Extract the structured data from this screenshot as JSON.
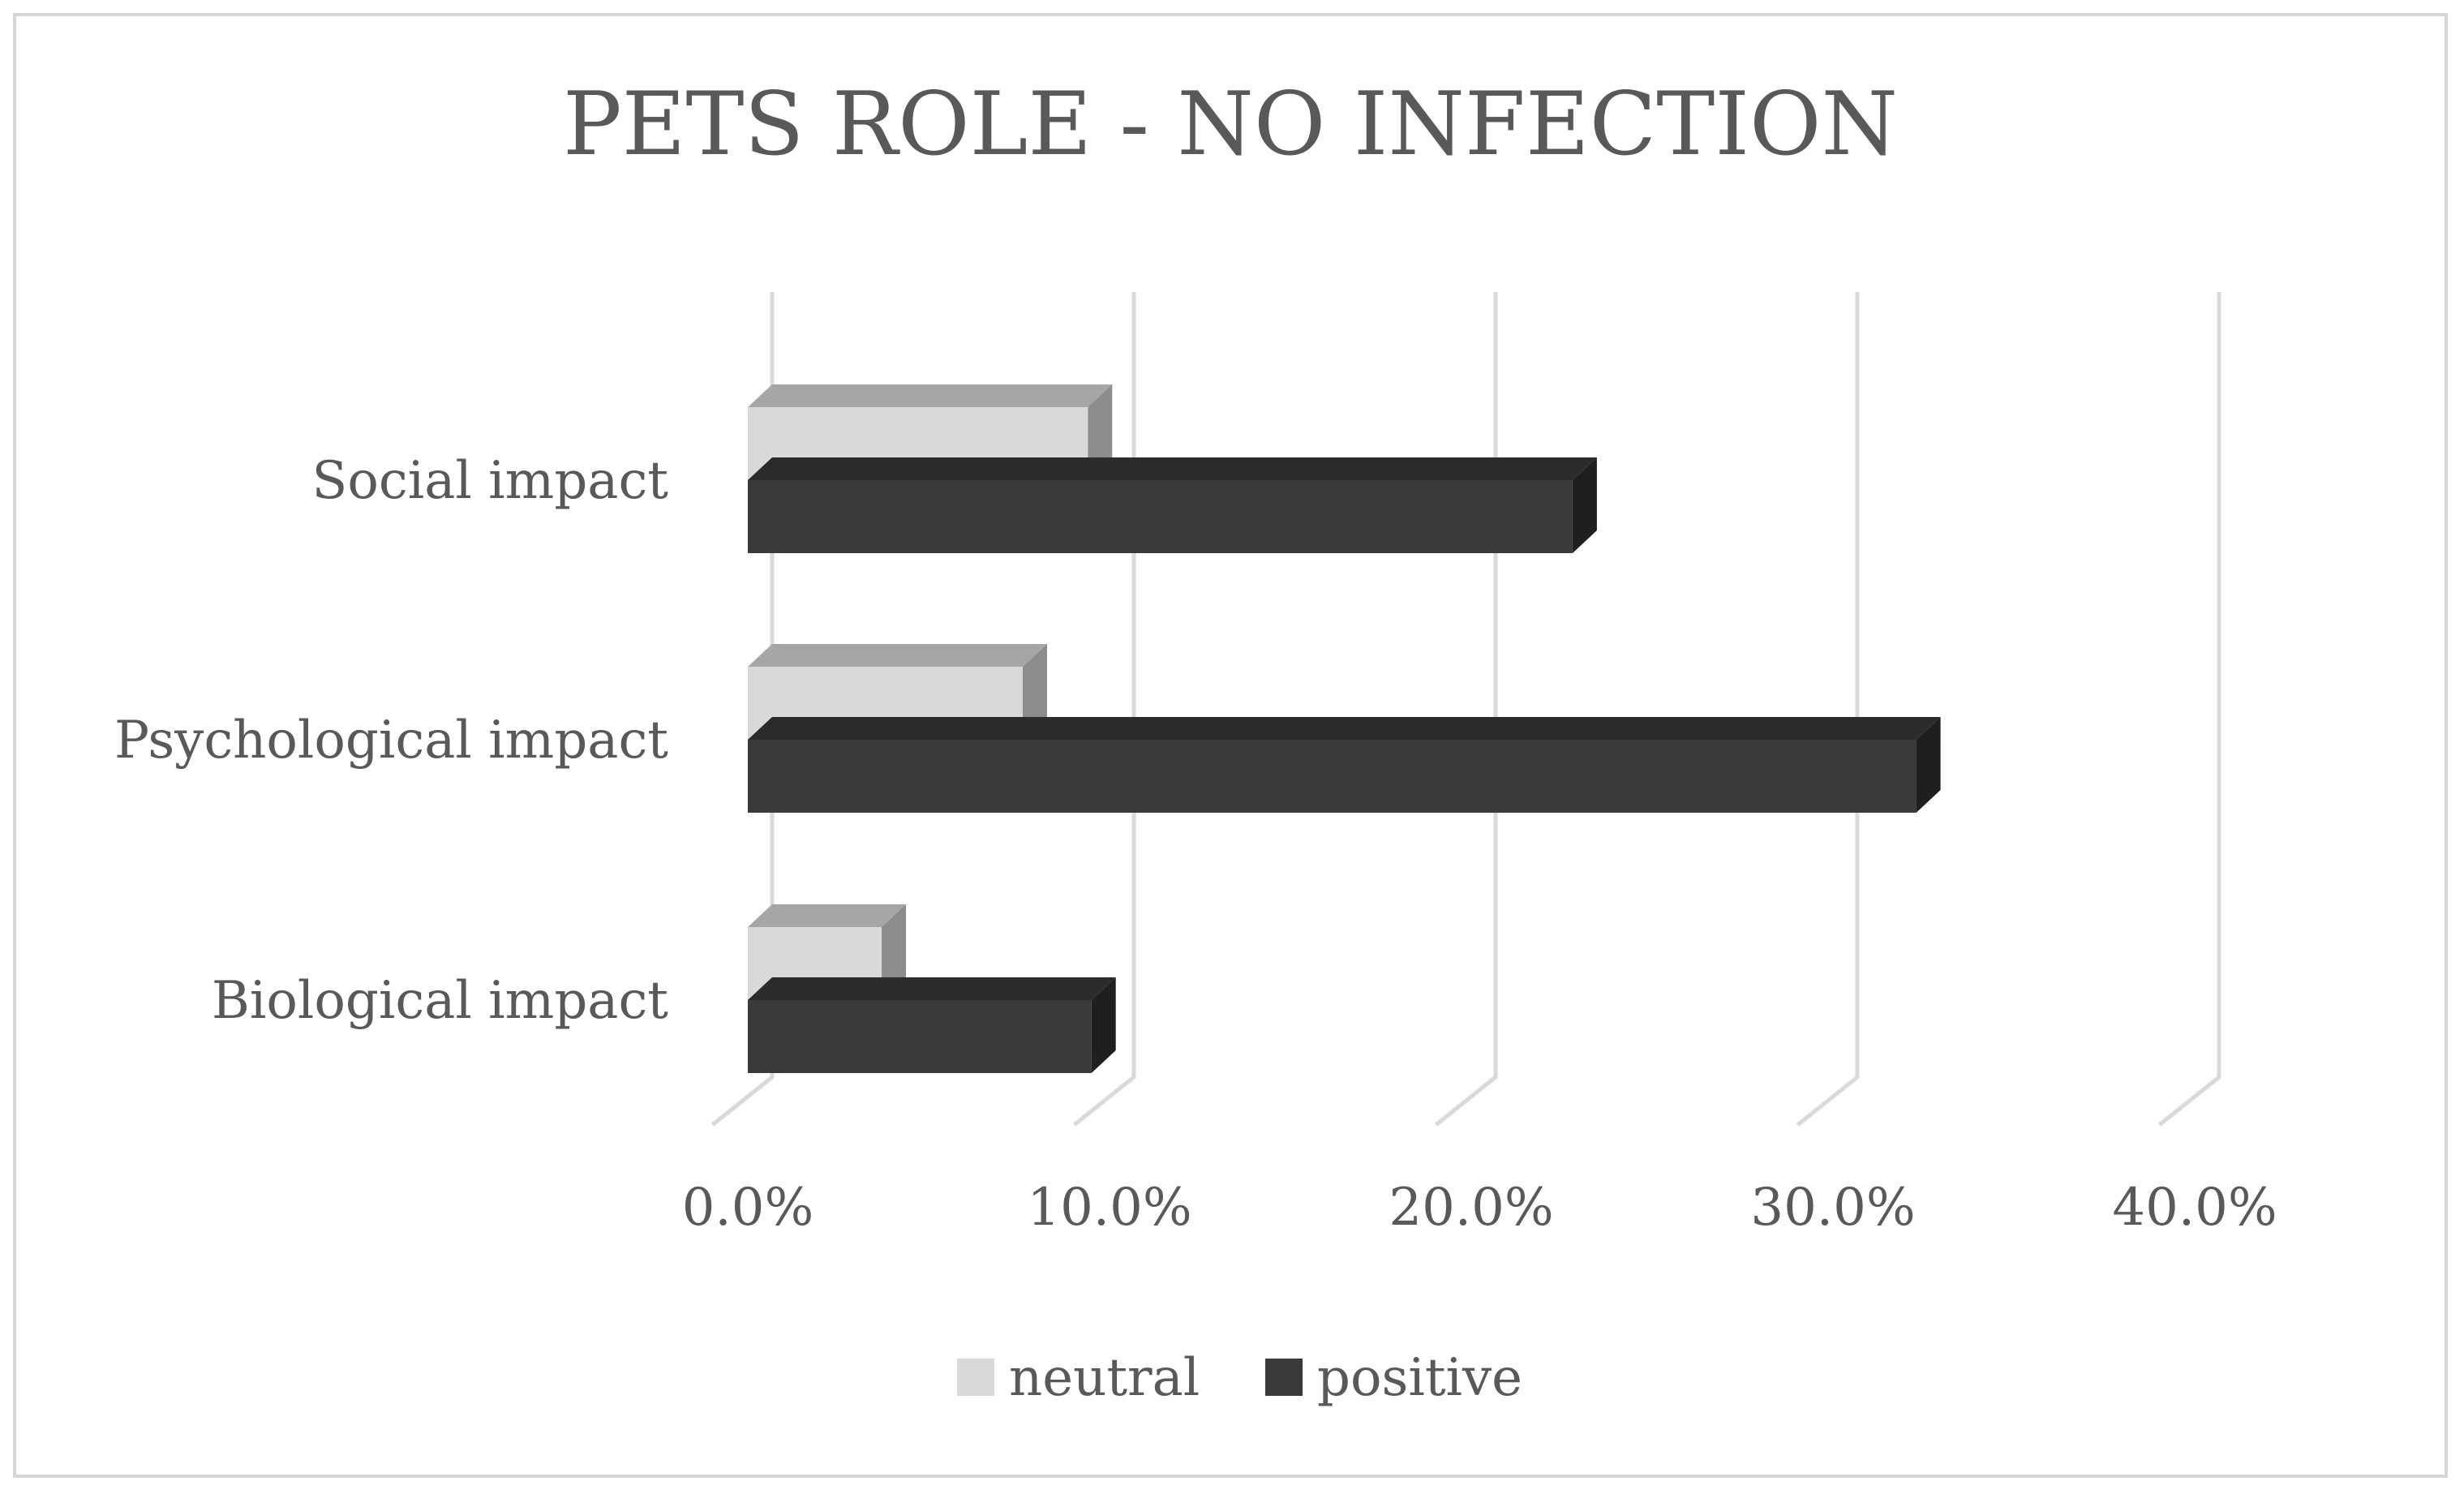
{
  "chart_data": {
    "type": "bar",
    "orientation": "horizontal",
    "style": "3d-clustered",
    "title": "PETS ROLE - NO INFECTION",
    "categories": [
      "Social impact",
      "Psychological impact",
      "Biological impact"
    ],
    "series": [
      {
        "name": "neutral",
        "values": [
          9.4,
          7.6,
          3.7
        ]
      },
      {
        "name": "positive",
        "values": [
          22.8,
          32.3,
          9.5
        ]
      }
    ],
    "xlabel": "",
    "ylabel": "",
    "xlim": [
      0,
      40
    ],
    "ticks": [
      0,
      10,
      20,
      30,
      40
    ],
    "tick_labels": [
      "0.0%",
      "10.0%",
      "20.0%",
      "30.0%",
      "40.0%"
    ],
    "grid": true,
    "legend_position": "bottom",
    "colors": {
      "neutral_front": "#d9d9d9",
      "neutral_top": "#a6a6a6",
      "neutral_side": "#8c8c8c",
      "positive_front": "#3a3a3a",
      "positive_top": "#2b2b2b",
      "positive_side": "#1f1f1f",
      "text": "#595959",
      "grid": "#d9d9d9",
      "border": "#d6d6d6"
    }
  }
}
